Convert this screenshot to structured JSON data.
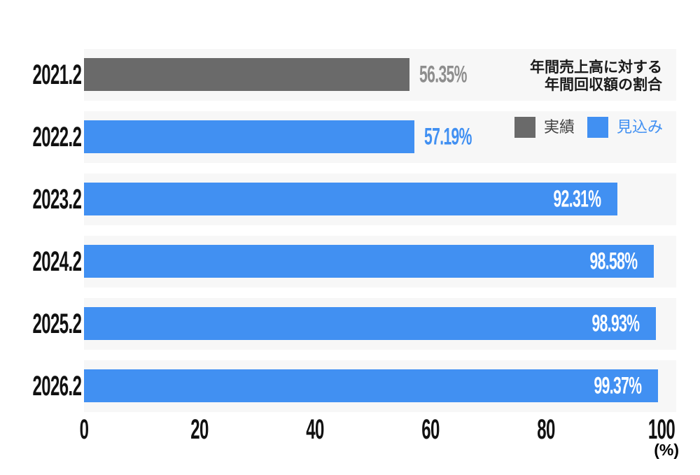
{
  "annotation": {
    "line1": "年間売上高に対する",
    "line2": "年間回収額の割合"
  },
  "legend": {
    "items": [
      {
        "label": "実績",
        "swatch_color": "#6A6A6A",
        "label_color": "#404040"
      },
      {
        "label": "見込み",
        "swatch_color": "#4190F2",
        "label_color": "#4190F2"
      }
    ]
  },
  "axis": {
    "tick_labels": [
      "0",
      "20",
      "40",
      "60",
      "80",
      "100"
    ],
    "unit_label": "(%)"
  },
  "colors": {
    "background": "#FFFFFF",
    "row_band": "#F7F7F7",
    "bar_actual": "#6A6A6A",
    "bar_forecast": "#4190F2",
    "value_inside_text": "#FFFFFF",
    "category_text": "#111111",
    "tick_text": "#111111",
    "title_text": "#1A1A1A"
  },
  "chart_data": {
    "type": "bar",
    "orientation": "horizontal",
    "title": "年間売上高に対する年間回収額の割合",
    "categories": [
      "2021.2",
      "2022.2",
      "2023.2",
      "2024.2",
      "2025.2",
      "2026.2"
    ],
    "series": [
      {
        "name": "実績",
        "color": "#6A6A6A",
        "values": [
          56.35,
          null,
          null,
          null,
          null,
          null
        ]
      },
      {
        "name": "見込み",
        "color": "#4190F2",
        "values": [
          null,
          57.19,
          92.31,
          98.58,
          98.93,
          99.37
        ]
      }
    ],
    "value_labels": [
      "56.35%",
      "57.19%",
      "92.31%",
      "98.58%",
      "98.93%",
      "99.37%"
    ],
    "value_label_placement": [
      "outside",
      "outside",
      "inside",
      "inside",
      "inside",
      "inside"
    ],
    "value_label_outside_colors": {
      "実績": "#8E8E8E",
      "見込み": "#4190F2"
    },
    "xlabel": "(%)",
    "xlim": [
      0,
      100
    ],
    "xticks": [
      0,
      20,
      40,
      60,
      80,
      100
    ],
    "grid": false,
    "legend_position": "top-right"
  }
}
